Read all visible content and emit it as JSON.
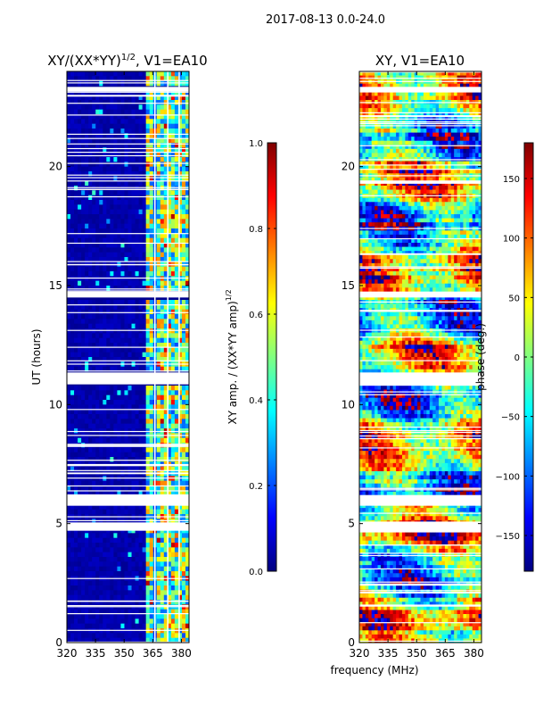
{
  "suptitle": "2017-08-13 0.0-24.0",
  "colors": {
    "jet": [
      "#00007f",
      "#0000ff",
      "#0080ff",
      "#00ffff",
      "#80ff80",
      "#ffff00",
      "#ff8000",
      "#ff0000",
      "#7f0000"
    ],
    "background": "#ffffff",
    "gap": "#ffffff"
  },
  "chart_data": [
    {
      "type": "heatmap",
      "title_base": "XY/(XX*YY)",
      "title_exp": "1/2",
      "title_suffix": ", V1=EA10",
      "ylabel": "UT (hours)",
      "xlabel": "",
      "xlim": [
        320,
        384
      ],
      "ylim": [
        0,
        24
      ],
      "xticks": [
        "320",
        "335",
        "350",
        "365",
        "380"
      ],
      "xtick_values": [
        320,
        335,
        350,
        365,
        380
      ],
      "yticks": [
        "0",
        "5",
        "10",
        "15",
        "20"
      ],
      "ytick_values": [
        0,
        5,
        10,
        15,
        20
      ],
      "data_gaps_hours": [
        [
          4.7,
          5.05
        ],
        [
          5.75,
          6.2
        ],
        [
          10.85,
          11.35
        ],
        [
          14.5,
          14.75
        ],
        [
          23.15,
          23.35
        ]
      ],
      "colorbar": {
        "label_base": "XY amp. / (XX*YY amp)",
        "label_exp": "1/2",
        "range": [
          0.0,
          1.0
        ],
        "ticks": [
          "0.0",
          "0.2",
          "0.4",
          "0.6",
          "0.8",
          "1.0"
        ],
        "tick_values": [
          0.0,
          0.2,
          0.4,
          0.6,
          0.8,
          1.0
        ]
      }
    },
    {
      "type": "heatmap",
      "title": "XY, V1=EA10",
      "xlabel": "frequency (MHz)",
      "ylabel": "",
      "xlim": [
        320,
        384
      ],
      "ylim": [
        0,
        24
      ],
      "xticks": [
        "320",
        "335",
        "350",
        "365",
        "380"
      ],
      "xtick_values": [
        320,
        335,
        350,
        365,
        380
      ],
      "yticks": [
        "0",
        "5",
        "10",
        "15",
        "20"
      ],
      "ytick_values": [
        0,
        5,
        10,
        15,
        20
      ],
      "data_gaps_hours": [
        [
          4.7,
          5.05
        ],
        [
          5.75,
          6.2
        ],
        [
          10.85,
          11.35
        ],
        [
          14.5,
          14.75
        ],
        [
          23.15,
          23.35
        ]
      ],
      "colorbar": {
        "label": "phase (deg.)",
        "range": [
          -180,
          180
        ],
        "ticks": [
          "−150",
          "−100",
          "−50",
          "0",
          "50",
          "100",
          "150"
        ],
        "tick_values": [
          -150,
          -100,
          -50,
          0,
          50,
          100,
          150
        ]
      }
    }
  ]
}
